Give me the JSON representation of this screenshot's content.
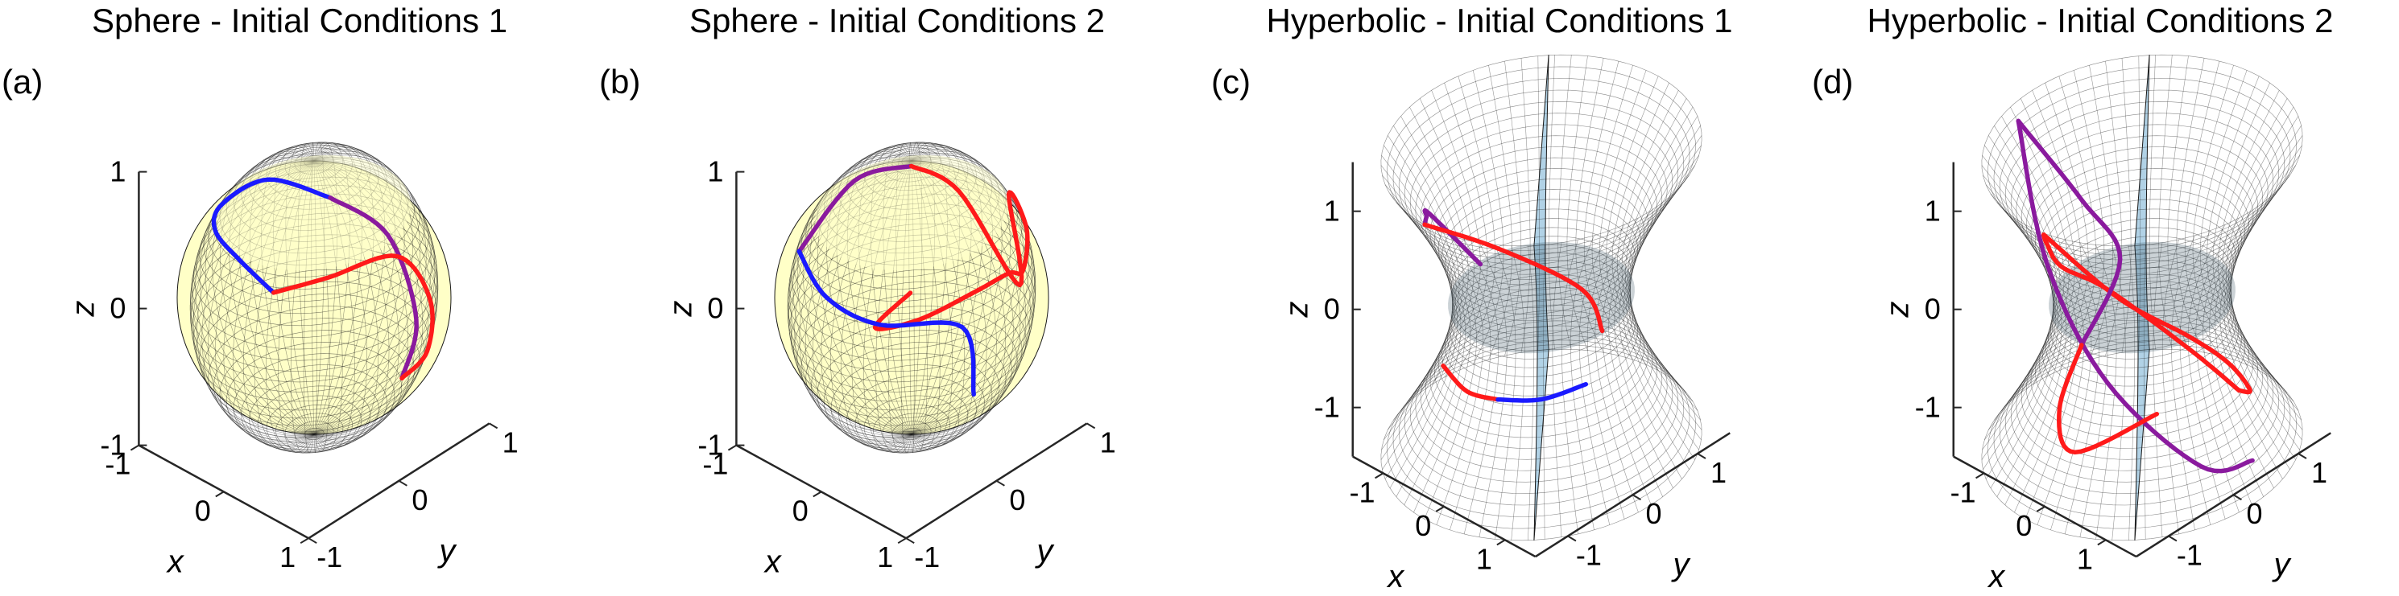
{
  "chart_data": [
    {
      "type": "surface3d",
      "panel_label": "(a)",
      "title": "Sphere - Initial Conditions 1",
      "surface": "sphere",
      "surface_color": "#ffff99",
      "xlabel": "x",
      "ylabel": "y",
      "zlabel": "z",
      "xticks": [
        "-1",
        "0",
        "1"
      ],
      "yticks": [
        "-1",
        "0",
        "1"
      ],
      "zticks": [
        "-1",
        "0",
        "1"
      ],
      "xlim": [
        -1,
        1
      ],
      "ylim": [
        -1,
        1
      ],
      "zlim": [
        -1,
        1
      ],
      "series": [
        {
          "color": "#1a1aff",
          "points": [
            [
              0.36,
              -0.16,
              0.92
            ],
            [
              -0.2,
              -0.32,
              0.93
            ],
            [
              -0.64,
              -0.42,
              0.64
            ],
            [
              -0.95,
              -0.2,
              0.25
            ],
            [
              -0.99,
              0.1,
              -0.1
            ],
            [
              -0.85,
              0.35,
              -0.4
            ]
          ]
        },
        {
          "color": "#8a1a9e",
          "points": [
            [
              0.36,
              -0.16,
              0.92
            ],
            [
              0.74,
              0.12,
              0.66
            ],
            [
              0.97,
              0.22,
              0.08
            ],
            [
              0.95,
              0.08,
              -0.3
            ]
          ]
        },
        {
          "color": "#ff1a1a",
          "points": [
            [
              -0.85,
              0.35,
              -0.4
            ],
            [
              -0.6,
              0.72,
              -0.36
            ],
            [
              -0.08,
              0.99,
              -0.14
            ],
            [
              0.45,
              0.86,
              -0.22
            ],
            [
              0.8,
              0.5,
              -0.33
            ],
            [
              0.95,
              0.08,
              -0.3
            ]
          ]
        }
      ]
    },
    {
      "type": "surface3d",
      "panel_label": "(b)",
      "title": "Sphere - Initial Conditions 2",
      "surface": "sphere",
      "surface_color": "#ffff99",
      "xlabel": "x",
      "ylabel": "y",
      "zlabel": "z",
      "xticks": [
        "-1",
        "0",
        "1"
      ],
      "yticks": [
        "-1",
        "0",
        "1"
      ],
      "zticks": [
        "-1",
        "0",
        "1"
      ],
      "xlim": [
        -1,
        1
      ],
      "ylim": [
        -1,
        1
      ],
      "zlim": [
        -1,
        1
      ],
      "series": [
        {
          "color": "#8a1a9e",
          "points": [
            [
              -0.9,
              -0.4,
              0.2
            ],
            [
              -0.3,
              -0.35,
              0.9
            ],
            [
              0.05,
              -0.05,
              1.0
            ]
          ]
        },
        {
          "color": "#ff1a1a",
          "points": [
            [
              0.05,
              -0.05,
              1.0
            ],
            [
              0.45,
              0.1,
              0.89
            ],
            [
              0.9,
              0.35,
              0.25
            ],
            [
              0.4,
              0.7,
              0.6
            ],
            [
              0.45,
              0.85,
              0.3
            ],
            [
              0.3,
              0.95,
              -0.1
            ],
            [
              0.1,
              0.98,
              -0.2
            ],
            [
              -0.2,
              0.9,
              -0.4
            ],
            [
              -0.55,
              0.6,
              -0.6
            ],
            [
              -0.75,
              0.3,
              -0.6
            ],
            [
              -0.6,
              0.55,
              -0.4
            ]
          ]
        },
        {
          "color": "#1a1aff",
          "points": [
            [
              -0.9,
              -0.4,
              0.2
            ],
            [
              -0.95,
              -0.05,
              -0.3
            ],
            [
              -0.75,
              0.35,
              -0.6
            ],
            [
              -0.2,
              0.75,
              -0.6
            ],
            [
              0.2,
              0.5,
              -0.85
            ]
          ]
        }
      ]
    },
    {
      "type": "surface3d",
      "panel_label": "(c)",
      "title": "Hyperbolic - Initial Conditions 1",
      "surface": "hyperboloid",
      "surface_color": "#a9cde3",
      "xlabel": "x",
      "ylabel": "y",
      "zlabel": "z",
      "xticks": [
        "-1",
        "0",
        "1"
      ],
      "yticks": [
        "-1",
        "0",
        "1"
      ],
      "zticks": [
        "-1",
        "0",
        "1"
      ],
      "xlim": [
        -1.5,
        1.5
      ],
      "ylim": [
        -1.5,
        1.5
      ],
      "zlim": [
        -1.5,
        1.5
      ],
      "series": [
        {
          "color": "#8a1a9e",
          "points": [
            [
              -1.0,
              0.0,
              0.0
            ],
            [
              -1.2,
              -0.6,
              0.7
            ],
            [
              -0.5,
              -1.3,
              1.2
            ],
            [
              0.0,
              -1.8,
              1.5
            ]
          ]
        },
        {
          "color": "#ff1a1a",
          "points": [
            [
              0.0,
              -1.8,
              1.5
            ],
            [
              0.6,
              -1.2,
              1.2
            ],
            [
              1.2,
              -0.5,
              0.7
            ],
            [
              1.0,
              0.0,
              0.0
            ]
          ]
        },
        {
          "color": "#ff1a1a",
          "points": [
            [
              -0.6,
              -0.95,
              -0.5
            ],
            [
              -0.1,
              -1.05,
              -0.55
            ],
            [
              0.35,
              -1.0,
              -0.5
            ]
          ]
        },
        {
          "color": "#1a1aff",
          "points": [
            [
              0.35,
              -1.0,
              -0.5
            ],
            [
              0.8,
              -0.75,
              -0.45
            ],
            [
              1.05,
              -0.3,
              -0.4
            ]
          ]
        }
      ]
    },
    {
      "type": "surface3d",
      "panel_label": "(d)",
      "title": "Hyperbolic - Initial Conditions 2",
      "surface": "hyperboloid",
      "surface_color": "#a9cde3",
      "xlabel": "x",
      "ylabel": "y",
      "zlabel": "z",
      "xticks": [
        "-1",
        "0",
        "1"
      ],
      "yticks": [
        "-1",
        "0",
        "1"
      ],
      "zticks": [
        "-1",
        "0",
        "1"
      ],
      "xlim": [
        -1.5,
        1.5
      ],
      "ylim": [
        -1.5,
        1.5
      ],
      "zlim": [
        -1.5,
        1.5
      ],
      "series": [
        {
          "color": "#8a1a9e",
          "points": [
            [
              -1.5,
              -0.5,
              1.5
            ],
            [
              -0.5,
              -1.0,
              0.6
            ],
            [
              0.6,
              -1.1,
              -0.2
            ],
            [
              1.5,
              -0.5,
              -1.0
            ],
            [
              1.6,
              0.2,
              -1.2
            ]
          ]
        },
        {
          "color": "#ff1a1a",
          "points": [
            [
              0.3,
              -1.8,
              1.5
            ],
            [
              -0.5,
              -1.0,
              0.8
            ],
            [
              -1.0,
              -0.3,
              0.1
            ],
            [
              -1.1,
              0.5,
              -0.5
            ],
            [
              -0.5,
              1.2,
              -1.2
            ],
            [
              0.1,
              1.4,
              -1.5
            ]
          ]
        },
        {
          "color": "#ff1a1a",
          "points": [
            [
              0.3,
              -1.8,
              1.5
            ],
            [
              0.9,
              -1.2,
              0.8
            ],
            [
              1.1,
              -0.3,
              0.1
            ],
            [
              1.0,
              0.4,
              -0.5
            ],
            [
              0.6,
              1.1,
              -1.2
            ],
            [
              0.1,
              1.4,
              -1.5
            ]
          ]
        },
        {
          "color": "#8a1a9e",
          "points": [
            [
              -1.5,
              -0.5,
              1.5
            ],
            [
              -1.2,
              0.2,
              0.5
            ],
            [
              -1.0,
              0.6,
              -0.2
            ],
            [
              -1.1,
              0.1,
              -0.9
            ]
          ]
        },
        {
          "color": "#ff1a1a",
          "points": [
            [
              -1.1,
              0.1,
              -0.9
            ],
            [
              -0.4,
              -0.9,
              -0.9
            ],
            [
              0.6,
              -1.6,
              -0.7
            ],
            [
              1.2,
              -0.9,
              -0.4
            ]
          ]
        }
      ]
    }
  ]
}
